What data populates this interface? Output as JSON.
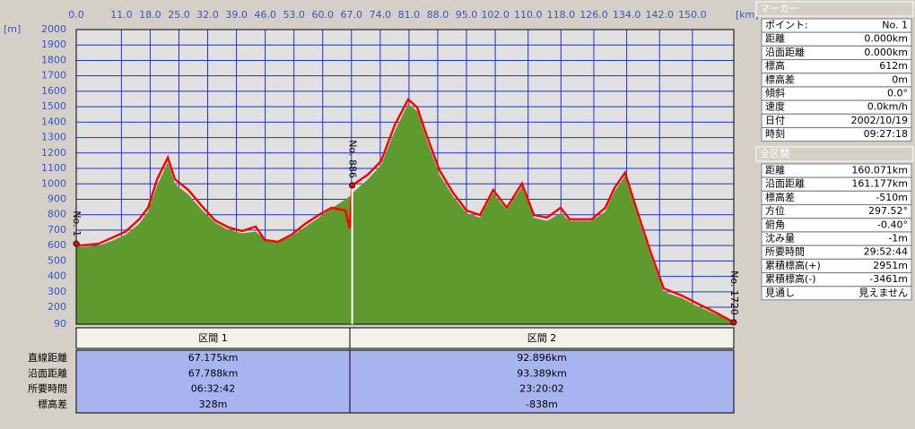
{
  "chart_data": {
    "type": "area",
    "y_unit": "[m]",
    "x_unit": "[km]",
    "xlim": [
      0,
      160.071
    ],
    "xticks": [
      {
        "value": 0,
        "label": "0.0"
      },
      {
        "value": 11,
        "label": "11.0"
      },
      {
        "value": 18,
        "label": "18.0"
      },
      {
        "value": 25,
        "label": "25.0"
      },
      {
        "value": 32,
        "label": "32.0"
      },
      {
        "value": 39,
        "label": "39.0"
      },
      {
        "value": 46,
        "label": "46.0"
      },
      {
        "value": 53,
        "label": "53.0"
      },
      {
        "value": 60,
        "label": "60.0"
      },
      {
        "value": 67,
        "label": "67.0"
      },
      {
        "value": 74,
        "label": "74.0"
      },
      {
        "value": 81,
        "label": "81.0"
      },
      {
        "value": 88,
        "label": "88.0"
      },
      {
        "value": 95,
        "label": "95.0"
      },
      {
        "value": 102,
        "label": "102.0"
      },
      {
        "value": 110,
        "label": "110.0"
      },
      {
        "value": 118,
        "label": "118.0"
      },
      {
        "value": 126,
        "label": "126.0"
      },
      {
        "value": 134,
        "label": "134.0"
      },
      {
        "value": 142,
        "label": "142.0"
      },
      {
        "value": 150,
        "label": "150.0"
      }
    ],
    "ylim": [
      90,
      2000
    ],
    "yticks": [
      90,
      200,
      300,
      400,
      500,
      600,
      700,
      800,
      900,
      1000,
      1100,
      1200,
      1300,
      1400,
      1500,
      1600,
      1700,
      1800,
      1900,
      2000
    ],
    "grid": true,
    "x": [
      0,
      1.1,
      5.5,
      8.7,
      12.0,
      15.3,
      17.5,
      19.7,
      22.3,
      24.0,
      27.3,
      30.6,
      33.8,
      37.1,
      40.4,
      43.7,
      45.9,
      49.1,
      52.4,
      55.7,
      59.0,
      62.2,
      65.5,
      66.6,
      67.175,
      71.0,
      74.2,
      77.5,
      80.8,
      83.0,
      85.2,
      88.4,
      91.7,
      95.0,
      98.3,
      101.5,
      104.8,
      108.5,
      111.4,
      114.6,
      117.9,
      120.1,
      125.5,
      128.8,
      131.0,
      133.6,
      136.5,
      139.7,
      143.0,
      147.4,
      151.7,
      156.1,
      160.071
    ],
    "series": [
      {
        "color": "#5f9a2f",
        "values": [
          612,
          590,
          600,
          630,
          670,
          740,
          820,
          990,
          1140,
          1000,
          930,
          830,
          750,
          700,
          680,
          690,
          640,
          620,
          660,
          720,
          780,
          840,
          900,
          920,
          940,
          1030,
          1120,
          1340,
          1520,
          1470,
          1290,
          1060,
          920,
          810,
          780,
          940,
          830,
          980,
          780,
          760,
          810,
          760,
          760,
          820,
          950,
          1050,
          800,
          540,
          300,
          260,
          200,
          150,
          110
        ]
      },
      {
        "color": "#ff0000",
        "values": [
          612,
          600,
          612,
          650,
          690,
          770,
          845,
          1030,
          1170,
          1030,
          960,
          855,
          763,
          717,
          694,
          723,
          636,
          624,
          670,
          740,
          798,
          845,
          827,
          711,
          990,
          1060,
          1147,
          1379,
          1547,
          1495,
          1321,
          1089,
          943,
          827,
          798,
          960,
          845,
          1002,
          798,
          781,
          845,
          770,
          770,
          845,
          972,
          1072,
          827,
          566,
          322,
          276,
          218,
          160,
          102
        ]
      }
    ],
    "markers": [
      {
        "x": 0,
        "label": "No. 1"
      },
      {
        "x": 67.175,
        "label": "No. 886"
      },
      {
        "x": 160.071,
        "label": "No. 1720"
      }
    ]
  },
  "sections": {
    "headers": [
      "区間 1",
      "区間 2"
    ],
    "rows": [
      {
        "label": "直線距離",
        "values": [
          "67.175km",
          "92.896km"
        ]
      },
      {
        "label": "沿面距離",
        "values": [
          "67.788km",
          "93.389km"
        ]
      },
      {
        "label": "所要時間",
        "values": [
          "06:32:42",
          "23:20:02"
        ]
      },
      {
        "label": "標高差",
        "values": [
          "328m",
          "-838m"
        ]
      }
    ]
  },
  "marker_panel": {
    "title": "マーカー",
    "rows": [
      [
        "ポイント:",
        "No. 1"
      ],
      [
        "距離",
        "0.000km"
      ],
      [
        "沿面距離",
        "0.000km"
      ],
      [
        "標高",
        "612m"
      ],
      [
        "標高差",
        "0m"
      ],
      [
        "傾斜",
        "0.0°"
      ],
      [
        "速度",
        "0.0km/h"
      ],
      [
        "日付",
        "2002/10/19"
      ],
      [
        "時刻",
        "09:27:18"
      ]
    ]
  },
  "total_panel": {
    "title": "全区間",
    "rows": [
      [
        "距離",
        "160.071km"
      ],
      [
        "沿面距離",
        "161.177km"
      ],
      [
        "標高差",
        "-510m"
      ],
      [
        "方位",
        "297.52°"
      ],
      [
        "俯角",
        "-0.40°"
      ],
      [
        "沈み量",
        "-1m"
      ],
      [
        "所要時間",
        "29:52:44"
      ],
      [
        "累積標高(+)",
        "2951m"
      ],
      [
        "累積標高(-)",
        "-3461m"
      ],
      [
        "見通し",
        "見えません"
      ]
    ]
  }
}
